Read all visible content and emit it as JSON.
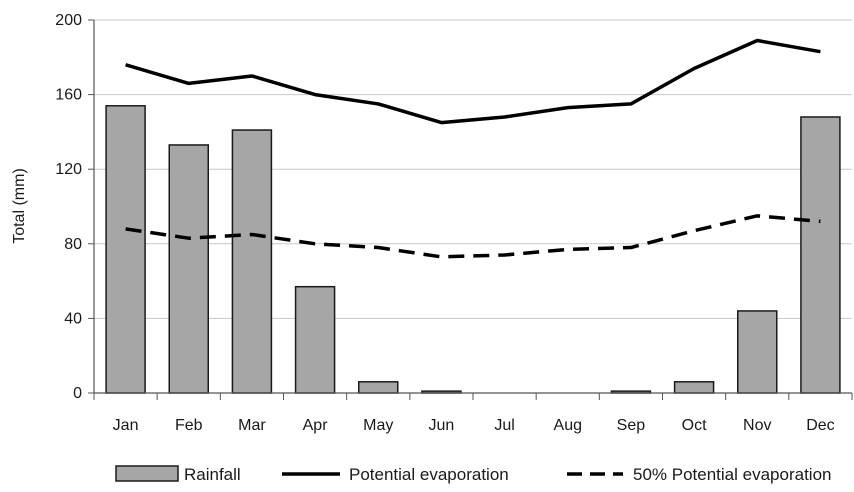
{
  "chart_data": {
    "type": "bar",
    "title": "",
    "xlabel": "",
    "ylabel": "Total (mm)",
    "ylim": [
      0,
      200
    ],
    "yticks": [
      "0",
      "40",
      "80",
      "120",
      "160",
      "200"
    ],
    "grid": true,
    "legend_position": "bottom",
    "categories": [
      "Jan",
      "Feb",
      "Mar",
      "Apr",
      "May",
      "Jun",
      "Jul",
      "Aug",
      "Sep",
      "Oct",
      "Nov",
      "Dec"
    ],
    "series": [
      {
        "name": "Rainfall",
        "kind": "bar",
        "color": "#a6a6a6",
        "values": [
          154,
          133,
          141,
          57,
          6,
          1,
          0,
          0,
          1,
          6,
          44,
          148
        ]
      },
      {
        "name": "Potential evaporation",
        "kind": "line",
        "style": "solid",
        "color": "#000000",
        "values": [
          176,
          166,
          170,
          160,
          155,
          145,
          148,
          153,
          155,
          174,
          189,
          183
        ]
      },
      {
        "name": "50% Potential evaporation",
        "kind": "line",
        "style": "dashed",
        "color": "#000000",
        "values": [
          88,
          83,
          85,
          80,
          78,
          73,
          74,
          77,
          78,
          87,
          95,
          92
        ]
      }
    ]
  },
  "colors": {
    "axis": "#555555",
    "grid": "#c8c8c8",
    "bar_stroke": "#1a1a1a"
  }
}
